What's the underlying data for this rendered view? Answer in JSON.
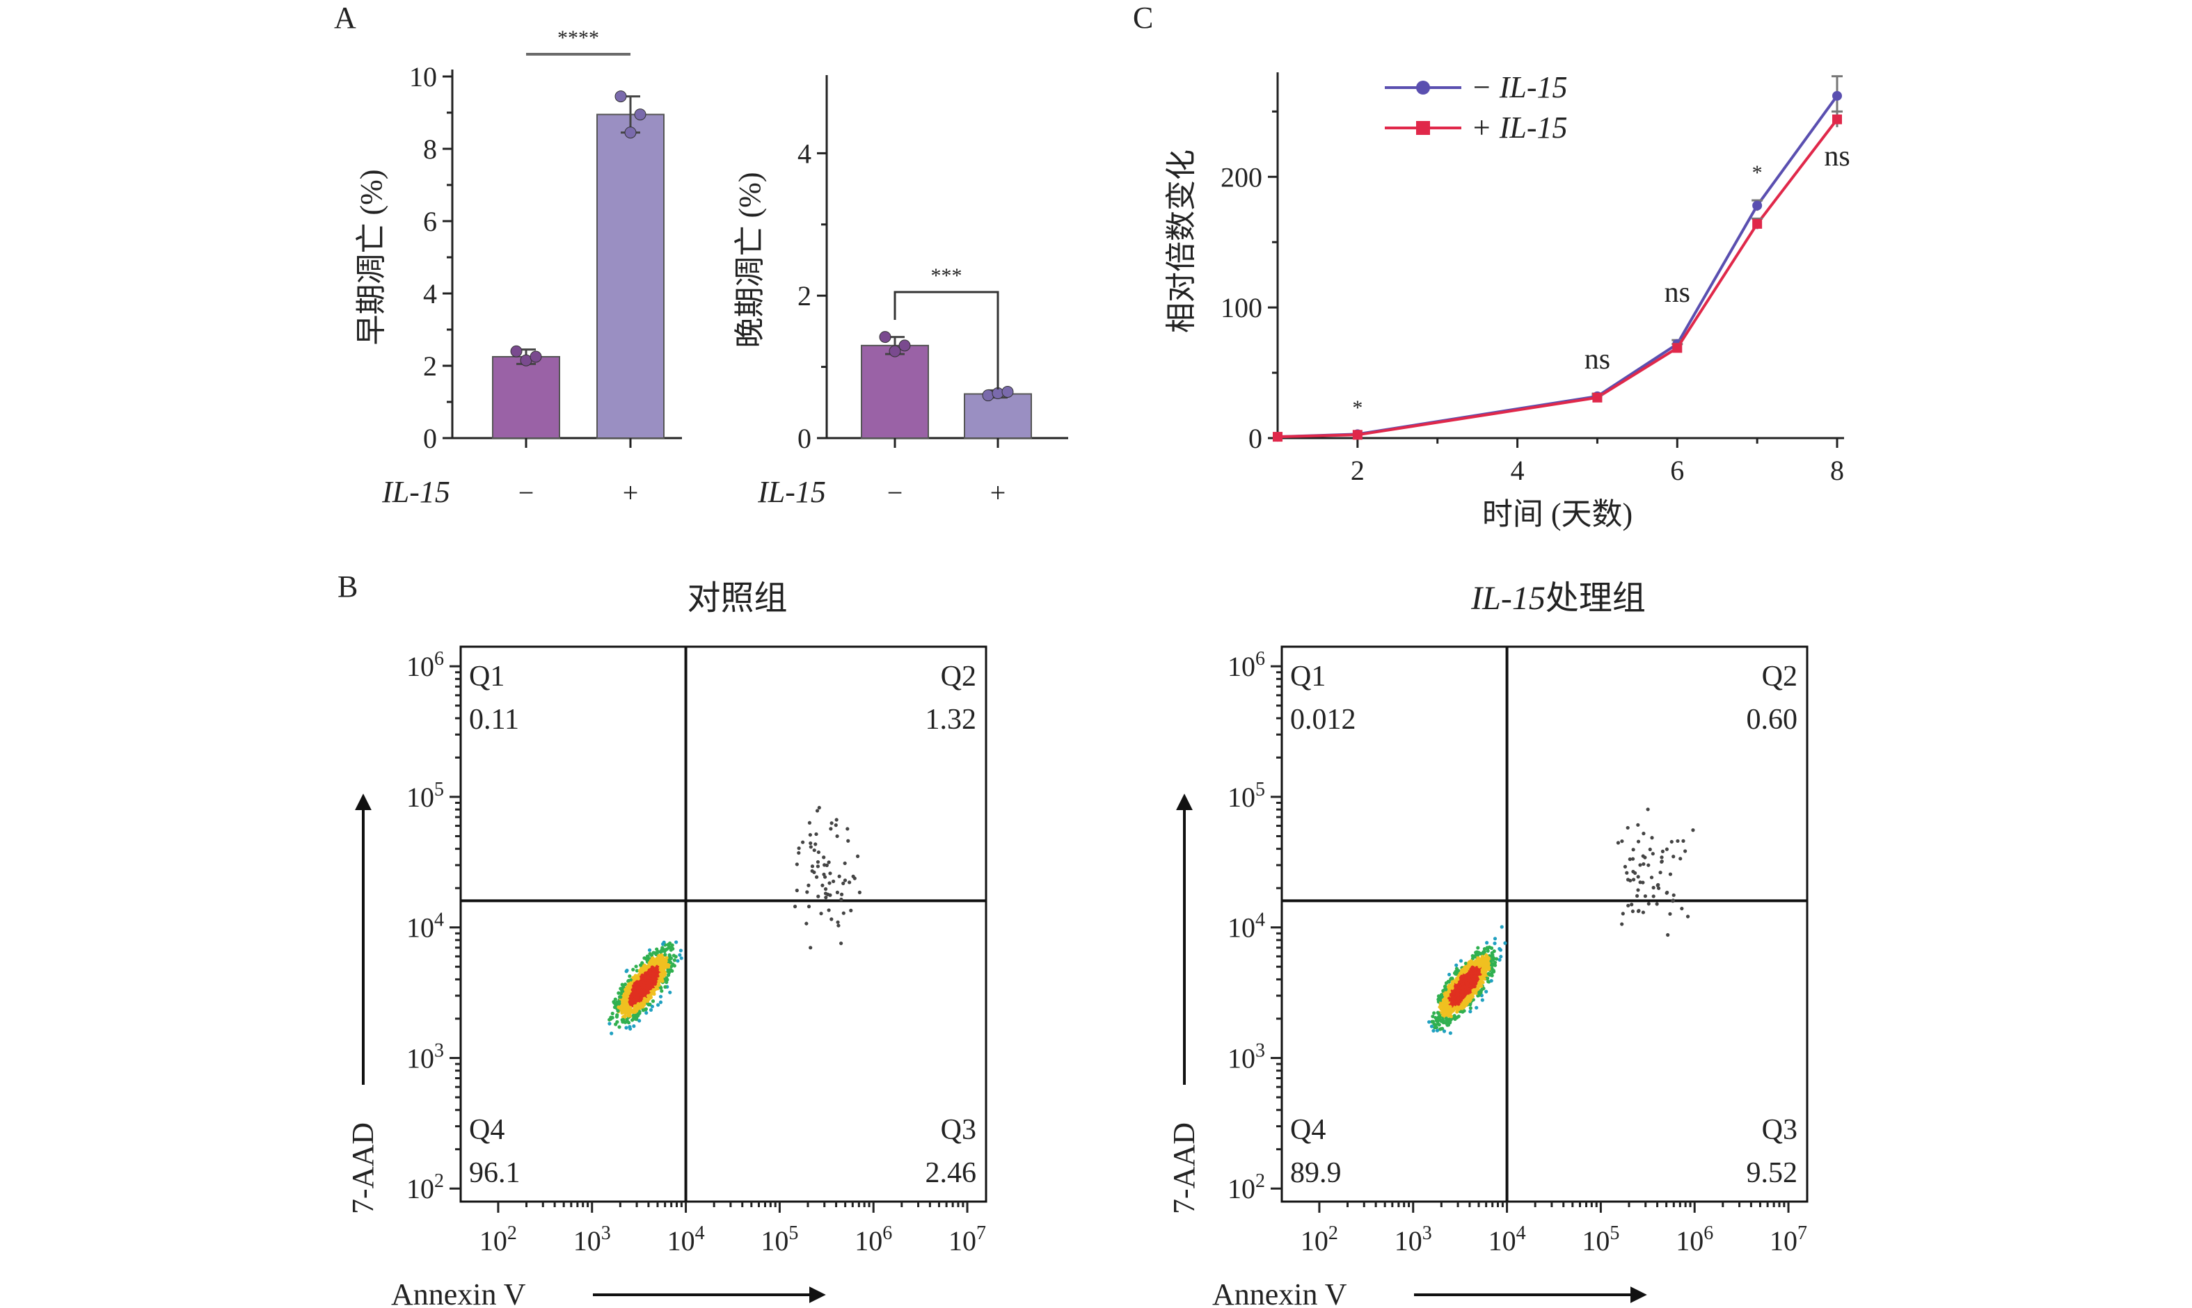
{
  "panels": {
    "a": "A",
    "b": "B",
    "c": "C"
  },
  "colors": {
    "bar_minus": "#9a62a6",
    "bar_plus": "#9a8fc2",
    "dot_minus": "#7a4a8f",
    "dot_plus": "#7a6aac",
    "line_minus": "#5a4fb0",
    "line_plus": "#e0284a",
    "sig_line": "#6b6b6b"
  },
  "chart_data": [
    {
      "id": "early-apoptosis",
      "type": "bar",
      "categories": [
        "−",
        "+"
      ],
      "category_axis_label": "IL-15",
      "values": [
        2.25,
        8.95
      ],
      "errors": [
        0.2,
        0.5
      ],
      "replicates": [
        [
          2.4,
          2.15,
          2.25
        ],
        [
          9.45,
          8.45,
          8.95
        ]
      ],
      "ylabel": "早期凋亡 (%)",
      "ylim": [
        0,
        10
      ],
      "yticks": [
        "0",
        "2",
        "4",
        "6",
        "8",
        "10"
      ],
      "significance": "****"
    },
    {
      "id": "late-apoptosis",
      "type": "bar",
      "categories": [
        "−",
        "+"
      ],
      "category_axis_label": "IL-15",
      "values": [
        1.3,
        0.62
      ],
      "errors": [
        0.12,
        0.05
      ],
      "replicates": [
        [
          1.42,
          1.22,
          1.3
        ],
        [
          0.6,
          0.63,
          0.65
        ]
      ],
      "ylabel": "晚期凋亡 (%)",
      "ylim": [
        0,
        5
      ],
      "yticks": [
        "0",
        "2",
        "4"
      ],
      "significance": "***"
    },
    {
      "id": "fold-change",
      "type": "line",
      "xlabel": "时间 (天数)",
      "ylabel": "相对倍数变化",
      "xlim": [
        1,
        8
      ],
      "ylim": [
        0,
        280
      ],
      "xticks": [
        "2",
        "4",
        "6",
        "8"
      ],
      "yticks": [
        "0",
        "100",
        "200"
      ],
      "x": [
        1,
        2,
        5,
        6,
        7,
        8
      ],
      "series": [
        {
          "name": "− IL-15",
          "values": [
            1,
            3,
            32,
            72,
            178,
            262
          ],
          "errors": [
            0,
            0.5,
            2,
            3,
            4,
            15
          ]
        },
        {
          "name": "+ IL-15",
          "values": [
            1,
            2.5,
            31,
            69,
            164,
            244
          ],
          "errors": [
            0,
            0.5,
            2,
            3,
            4,
            6
          ]
        }
      ],
      "annotations": [
        {
          "x": 2,
          "label": "*"
        },
        {
          "x": 5,
          "label": "ns"
        },
        {
          "x": 6,
          "label": "ns"
        },
        {
          "x": 7,
          "label": "*"
        },
        {
          "x": 8,
          "label": "ns"
        }
      ],
      "legend_position": "top-left"
    },
    {
      "id": "flow-control",
      "type": "scatter",
      "title": "对照组",
      "xlabel": "Annexin V",
      "ylabel": "7-AAD",
      "xticks": [
        "10^2",
        "10^3",
        "10^4",
        "10^5",
        "10^6",
        "10^7"
      ],
      "yticks": [
        "10^2",
        "10^3",
        "10^4",
        "10^5",
        "10^6"
      ],
      "scale": "log",
      "quadrants": [
        {
          "name": "Q1",
          "value": "0.11",
          "position": "top-left"
        },
        {
          "name": "Q2",
          "value": "1.32",
          "position": "top-right"
        },
        {
          "name": "Q4",
          "value": "96.1",
          "position": "bottom-left"
        },
        {
          "name": "Q3",
          "value": "2.46",
          "position": "bottom-right"
        }
      ],
      "gate": {
        "x": 10000,
        "y": 16000
      }
    },
    {
      "id": "flow-il15",
      "type": "scatter",
      "title_italic": "IL-15",
      "title": "处理组",
      "xlabel": "Annexin V",
      "ylabel": "7-AAD",
      "xticks": [
        "10^2",
        "10^3",
        "10^4",
        "10^5",
        "10^6",
        "10^7"
      ],
      "yticks": [
        "10^2",
        "10^3",
        "10^4",
        "10^5",
        "10^6"
      ],
      "scale": "log",
      "quadrants": [
        {
          "name": "Q1",
          "value": "0.012",
          "position": "top-left"
        },
        {
          "name": "Q2",
          "value": "0.60",
          "position": "top-right"
        },
        {
          "name": "Q4",
          "value": "89.9",
          "position": "bottom-left"
        },
        {
          "name": "Q3",
          "value": "9.52",
          "position": "bottom-right"
        }
      ],
      "gate": {
        "x": 10000,
        "y": 16000
      }
    }
  ]
}
